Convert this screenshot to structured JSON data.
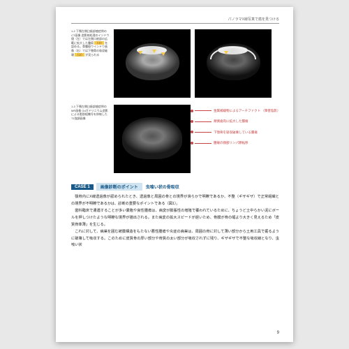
{
  "header": "パノラマX線写真で癌を見つける",
  "fig1": {
    "num": "1-2",
    "caption": "下顎左側臼歯部癌症例のCT画像\n造影剤処理のインドウ値（左）では左側口底部の広範に拡大した腫瘍",
    "hl1": "（⇒）",
    "caption2": "を認める。骨腫瘍ウインドウ画像（右）では下顎骨の吸収破壊",
    "hl2": "（⇒）",
    "caption3": "が見られる"
  },
  "fig2": {
    "num": "1-3",
    "caption": "下顎左側臼歯部癌症例のMR画像\nGdガドリニウム造影による脂肪組織号を抑制したT1強調画像"
  },
  "annotations": [
    "金属補綴物によるアーチファクト\n（障害陰影）",
    "頬側歯肉に拡大した腫瘍",
    "下顎骨を吸収破壊している腫瘍",
    "腫瘍の頸部リンパ節転移"
  ],
  "case": {
    "num": "CASE 1",
    "label": "画像診断のポイント",
    "title": "虫喰い状の骨吸収"
  },
  "paragraphs": [
    "顎骨内にX線透過像が認められたとき、透過像と周囲の骨との境界が滑らかで明瞭であるか、不整（ギザギザ）で正常組織との境界が不明瞭であるかは、診断の重要なポイントである（図1）。",
    "歯科臨床で遭遇することが多い嚢胞や良性腫瘍は、病変が膨脹性の増殖で覆われているために、ちょうど土中らかい泥にボールを押しつけたような明瞭な境界が描出される。また病変の拡大スピードが遅いため、骨膜が骨の幅より大きく見えるため「皮質骨菲薄」を生じる。",
    "これに対して、病巣を囲む被膜構造をもたない悪性腫瘍や炎症の病巣は、周囲の骨に対して薄い部分から土用工具で掘るように破壊して吸収する。このために皮質骨の厚い部分や骨質の太い部分が吸収されずに残り、ギザギザで不整な吸収線となり、虫喰い状"
  ],
  "pageNum": "9"
}
